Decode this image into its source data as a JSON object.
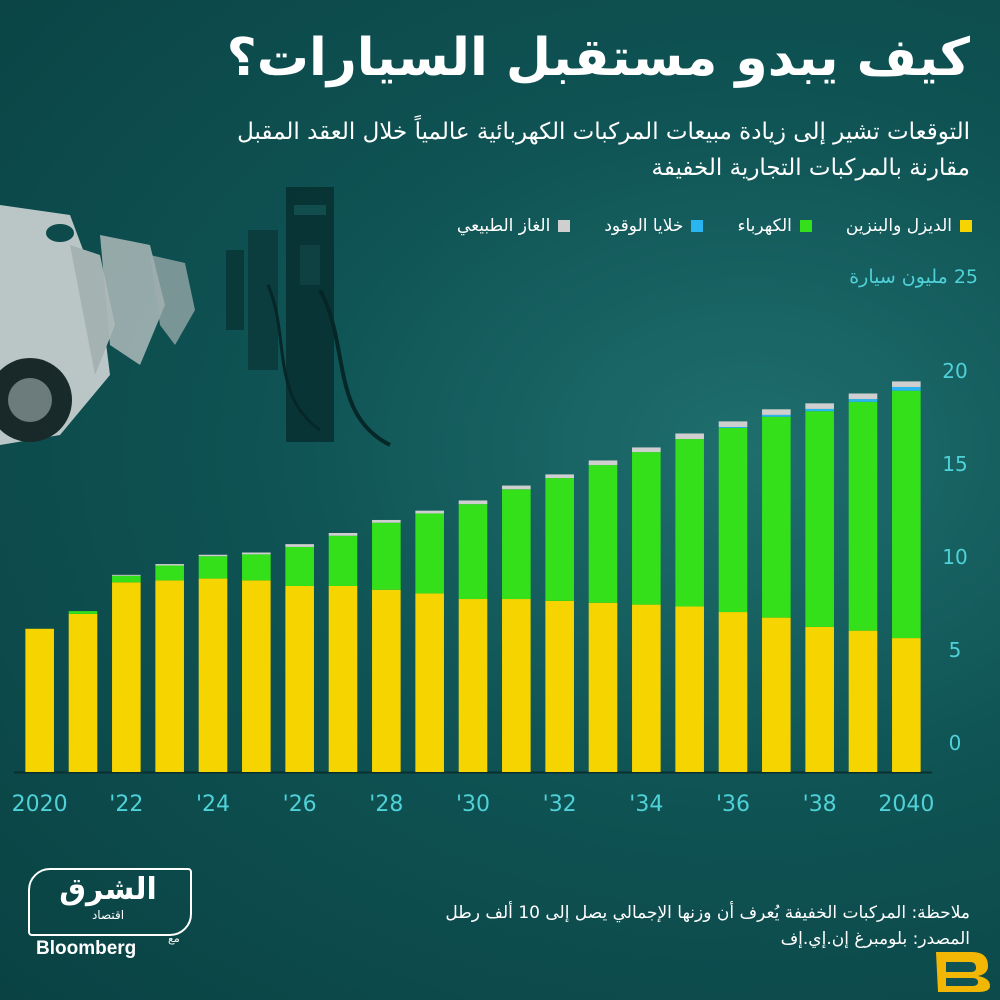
{
  "header": {
    "title": "كيف يبدو مستقبل السيارات؟",
    "subtitle_line1": "التوقعات تشير إلى زيادة مبيعات المركبات الكهربائية عالمياً خلال العقد المقبل",
    "subtitle_line2": "مقارنة بالمركبات التجارية الخفيفة"
  },
  "legend": {
    "items": [
      {
        "label": "الديزل والبنزين",
        "color": "#f5d400"
      },
      {
        "label": "الكهرباء",
        "color": "#33e01a"
      },
      {
        "label": "خلايا الوقود",
        "color": "#29b6f0"
      },
      {
        "label": "الغاز الطبيعي",
        "color": "#cfcfcf"
      }
    ]
  },
  "chart_data": {
    "type": "bar",
    "stacked": true,
    "unit_label": "25 مليون سيارة",
    "ylim": [
      0,
      25
    ],
    "y_ticks": [
      "0",
      "5",
      "10",
      "15",
      "20"
    ],
    "y_tick_values": [
      0,
      5,
      10,
      15,
      20
    ],
    "x_tick_labels": [
      "2020",
      "'22",
      "'24",
      "'26",
      "'28",
      "'30",
      "'32",
      "'34",
      "'36",
      "'38",
      "2040"
    ],
    "categories": [
      2020,
      2021,
      2022,
      2023,
      2024,
      2025,
      2026,
      2027,
      2028,
      2029,
      2030,
      2031,
      2032,
      2033,
      2034,
      2035,
      2036,
      2037,
      2038,
      2039,
      2040
    ],
    "series": [
      {
        "name": "الديزل والبنزين",
        "color": "#f5d400",
        "values": [
          7.7,
          8.5,
          10.2,
          10.3,
          10.4,
          10.3,
          10.0,
          10.0,
          9.8,
          9.6,
          9.3,
          9.3,
          9.2,
          9.1,
          9.0,
          8.9,
          8.6,
          8.3,
          7.8,
          7.6,
          7.2
        ]
      },
      {
        "name": "الكهرباء",
        "color": "#33e01a",
        "values": [
          0.0,
          0.15,
          0.35,
          0.8,
          1.2,
          1.4,
          2.1,
          2.7,
          3.6,
          4.3,
          5.1,
          5.9,
          6.6,
          7.4,
          8.2,
          9.0,
          9.9,
          10.8,
          11.6,
          12.3,
          13.3
        ]
      },
      {
        "name": "خلايا الوقود",
        "color": "#29b6f0",
        "values": [
          0,
          0,
          0,
          0,
          0,
          0,
          0,
          0,
          0,
          0,
          0,
          0,
          0,
          0,
          0,
          0,
          0.05,
          0.1,
          0.12,
          0.15,
          0.2
        ]
      },
      {
        "name": "الغاز الطبيعي",
        "color": "#cfcfcf",
        "values": [
          0,
          0,
          0.05,
          0.08,
          0.08,
          0.1,
          0.15,
          0.15,
          0.15,
          0.15,
          0.2,
          0.2,
          0.2,
          0.25,
          0.25,
          0.3,
          0.3,
          0.3,
          0.3,
          0.3,
          0.3
        ]
      }
    ]
  },
  "notes": {
    "note_line": "ملاحظة: المركبات الخفيفة يُعرف أن وزنها الإجمالي يصل إلى 10 ألف رطل",
    "source_line": "المصدر: بلومبرغ إن.إي.إف"
  },
  "logo": {
    "main": "الشرق",
    "sub": "اقتصاد",
    "with": "مع",
    "partner": "Bloomberg"
  }
}
